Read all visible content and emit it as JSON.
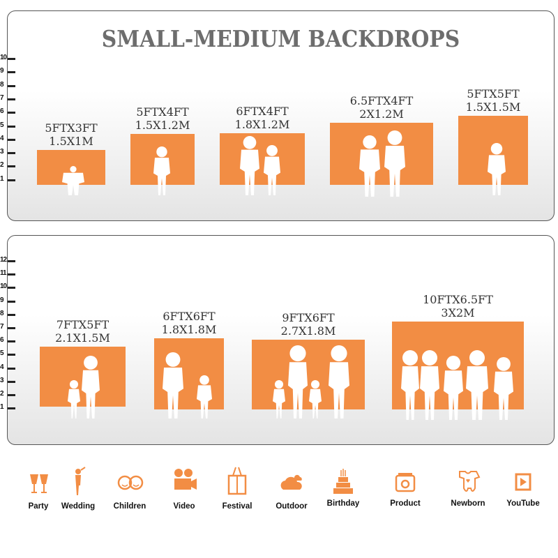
{
  "title": "SMALL-MEDIUM BACKDROPS",
  "accent_color": "#f28d44",
  "top_ruler": [
    "10",
    "9",
    "8",
    "7",
    "6",
    "5",
    "4",
    "3",
    "2",
    "1"
  ],
  "bottom_ruler": [
    "12",
    "11",
    "10",
    "9",
    "8",
    "7",
    "6",
    "5",
    "4",
    "3",
    "2",
    "1"
  ],
  "top_backdrops": [
    {
      "ft": "5FTX3FT",
      "m": "1.5X1M",
      "figures": "crawling baby"
    },
    {
      "ft": "5FTX4FT",
      "m": "1.5X1.2M",
      "figures": "girl"
    },
    {
      "ft": "6FTX4FT",
      "m": "1.8X1.2M",
      "figures": "boy and girl"
    },
    {
      "ft": "6.5FTX4FT",
      "m": "2X1.2M",
      "figures": "girl and boy"
    },
    {
      "ft": "5FTX5FT",
      "m": "1.5X1.5M",
      "figures": "girl"
    }
  ],
  "bottom_backdrops": [
    {
      "ft": "7FTX5FT",
      "m": "2.1X1.5M",
      "figures": "mother and child"
    },
    {
      "ft": "6FTX6FT",
      "m": "1.8X1.8M",
      "figures": "adult with child and girl"
    },
    {
      "ft": "9FTX6FT",
      "m": "2.7X1.8M",
      "figures": "family of four"
    },
    {
      "ft": "10FTX6.5FT",
      "m": "3X2M",
      "figures": "five adults"
    }
  ],
  "uses": [
    {
      "label": "Party",
      "icon": "champagne-glasses-icon"
    },
    {
      "label": "Wedding",
      "icon": "wedding-couple-icon"
    },
    {
      "label": "Children",
      "icon": "children-faces-icon"
    },
    {
      "label": "Video",
      "icon": "film-camera-icon"
    },
    {
      "label": "Festival",
      "icon": "gift-box-icon"
    },
    {
      "label": "Outdoor",
      "icon": "cloud-icon"
    },
    {
      "label": "Birthday",
      "icon": "birthday-cake-icon"
    },
    {
      "label": "Product",
      "icon": "camera-icon"
    },
    {
      "label": "Newborn",
      "icon": "baby-onesie-icon"
    },
    {
      "label": "YouTube",
      "icon": "play-button-icon"
    }
  ]
}
